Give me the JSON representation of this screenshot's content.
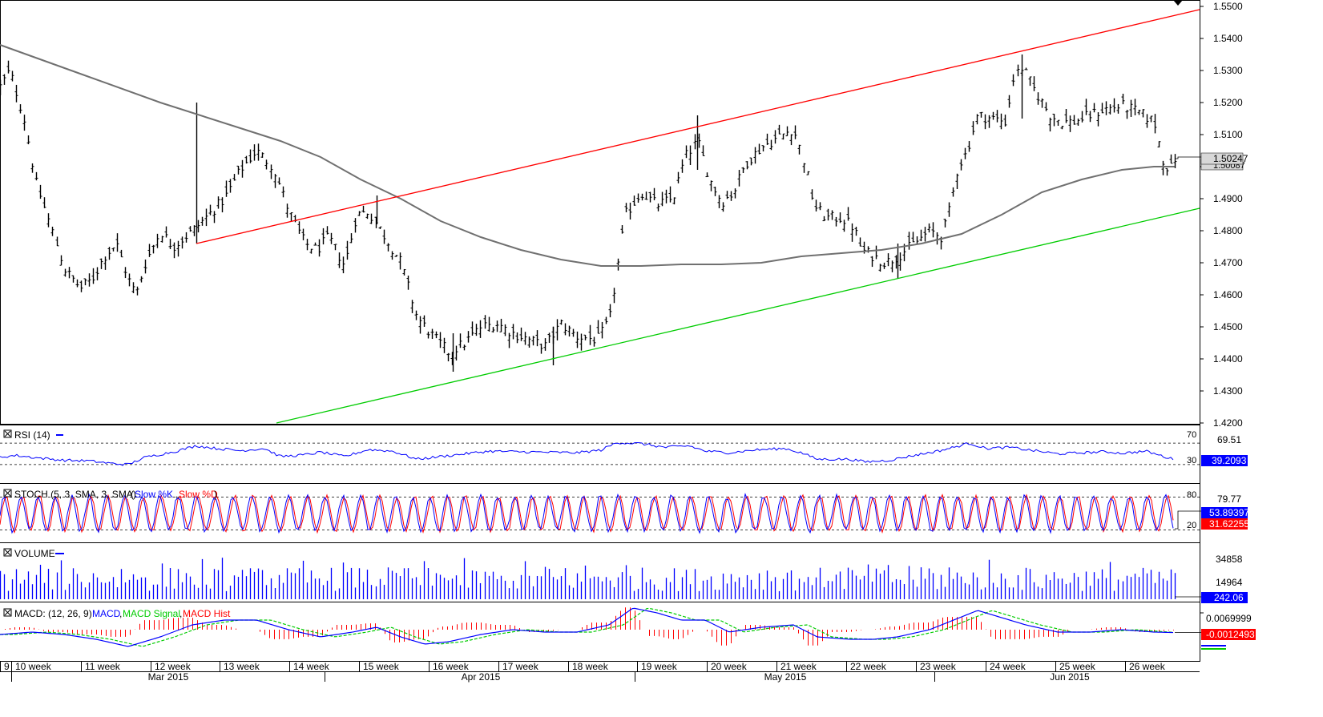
{
  "chart_data": {
    "type": "ohlc",
    "price_axis": {
      "ticks": [
        "1.5500",
        "1.5400",
        "1.5300",
        "1.5200",
        "1.5100",
        "1.5000",
        "1.4900",
        "1.4800",
        "1.4700",
        "1.4600",
        "1.4500",
        "1.4400",
        "1.4300",
        "1.4200"
      ],
      "ylim": [
        1.42,
        1.55
      ],
      "current_price": "1.50247",
      "prev_marker": "1.50087"
    },
    "x_axis": {
      "week_labels": [
        "9",
        "10 week",
        "11 week",
        "12 week",
        "13 week",
        "14 week",
        "15 week",
        "16 week",
        "17 week",
        "18 week",
        "19 week",
        "20 week",
        "21 week",
        "22 week",
        "23 week",
        "24 week",
        "25 week",
        "26 week"
      ],
      "month_labels": [
        "Mar 2015",
        "Apr 2015",
        "May 2015",
        "Jun 2015"
      ]
    },
    "price_series": {
      "close_anchors": [
        [
          0,
          1.525
        ],
        [
          12,
          1.53
        ],
        [
          30,
          1.515
        ],
        [
          45,
          1.495
        ],
        [
          65,
          1.48
        ],
        [
          80,
          1.468
        ],
        [
          100,
          1.462
        ],
        [
          115,
          1.465
        ],
        [
          130,
          1.472
        ],
        [
          145,
          1.476
        ],
        [
          160,
          1.465
        ],
        [
          170,
          1.46
        ],
        [
          180,
          1.469
        ],
        [
          200,
          1.48
        ],
        [
          215,
          1.475
        ],
        [
          240,
          1.48
        ],
        [
          260,
          1.485
        ],
        [
          280,
          1.49
        ],
        [
          300,
          1.499
        ],
        [
          320,
          1.505
        ],
        [
          340,
          1.5
        ],
        [
          360,
          1.486
        ],
        [
          380,
          1.476
        ],
        [
          395,
          1.474
        ],
        [
          410,
          1.478
        ],
        [
          430,
          1.469
        ],
        [
          445,
          1.485
        ],
        [
          460,
          1.486
        ],
        [
          480,
          1.478
        ],
        [
          500,
          1.47
        ],
        [
          520,
          1.453
        ],
        [
          540,
          1.447
        ],
        [
          560,
          1.442
        ],
        [
          580,
          1.445
        ],
        [
          600,
          1.45
        ],
        [
          620,
          1.451
        ],
        [
          640,
          1.448
        ],
        [
          660,
          1.446
        ],
        [
          680,
          1.444
        ],
        [
          700,
          1.451
        ],
        [
          720,
          1.447
        ],
        [
          745,
          1.446
        ],
        [
          760,
          1.452
        ],
        [
          780,
          1.485
        ],
        [
          800,
          1.492
        ],
        [
          820,
          1.488
        ],
        [
          840,
          1.49
        ],
        [
          855,
          1.503
        ],
        [
          870,
          1.508
        ],
        [
          885,
          1.496
        ],
        [
          900,
          1.489
        ],
        [
          915,
          1.492
        ],
        [
          930,
          1.501
        ],
        [
          950,
          1.506
        ],
        [
          970,
          1.509
        ],
        [
          990,
          1.512
        ],
        [
          1005,
          1.5
        ],
        [
          1015,
          1.488
        ],
        [
          1030,
          1.484
        ],
        [
          1050,
          1.484
        ],
        [
          1065,
          1.481
        ],
        [
          1075,
          1.474
        ],
        [
          1090,
          1.472
        ],
        [
          1105,
          1.47
        ],
        [
          1120,
          1.472
        ],
        [
          1140,
          1.476
        ],
        [
          1160,
          1.48
        ],
        [
          1175,
          1.478
        ],
        [
          1185,
          1.487
        ],
        [
          1195,
          1.5
        ],
        [
          1205,
          1.504
        ],
        [
          1220,
          1.516
        ],
        [
          1240,
          1.515
        ],
        [
          1255,
          1.514
        ],
        [
          1265,
          1.528
        ],
        [
          1275,
          1.531
        ],
        [
          1290,
          1.524
        ],
        [
          1310,
          1.516
        ],
        [
          1325,
          1.514
        ],
        [
          1340,
          1.514
        ],
        [
          1360,
          1.516
        ],
        [
          1380,
          1.518
        ],
        [
          1400,
          1.519
        ],
        [
          1420,
          1.517
        ],
        [
          1440,
          1.514
        ],
        [
          1452,
          1.501
        ],
        [
          1460,
          1.499
        ],
        [
          1466,
          1.5025
        ]
      ],
      "bar_count": 292,
      "x_start": 0,
      "x_end": 1466
    },
    "moving_average": {
      "name": "gray-ma",
      "points": [
        [
          0,
          1.538
        ],
        [
          100,
          1.529
        ],
        [
          200,
          1.52
        ],
        [
          300,
          1.512
        ],
        [
          350,
          1.508
        ],
        [
          400,
          1.503
        ],
        [
          450,
          1.496
        ],
        [
          500,
          1.49
        ],
        [
          550,
          1.483
        ],
        [
          600,
          1.478
        ],
        [
          650,
          1.474
        ],
        [
          700,
          1.471
        ],
        [
          750,
          1.469
        ],
        [
          800,
          1.469
        ],
        [
          850,
          1.4695
        ],
        [
          900,
          1.4695
        ],
        [
          950,
          1.47
        ],
        [
          1000,
          1.472
        ],
        [
          1050,
          1.473
        ],
        [
          1100,
          1.474
        ],
        [
          1150,
          1.476
        ],
        [
          1200,
          1.479
        ],
        [
          1250,
          1.485
        ],
        [
          1300,
          1.492
        ],
        [
          1350,
          1.496
        ],
        [
          1400,
          1.499
        ],
        [
          1440,
          1.5
        ],
        [
          1466,
          1.5
        ]
      ]
    },
    "trendlines": [
      {
        "name": "upper-channel",
        "color": "#ff0000",
        "p1": [
          245,
          1.476
        ],
        "p2": [
          1497,
          1.549
        ]
      },
      {
        "name": "lower-channel",
        "color": "#00cc00",
        "p1": [
          345,
          1.42
        ],
        "p2": [
          1497,
          1.487
        ]
      }
    ],
    "rsi": {
      "label": "RSI (14)",
      "levels": [
        "70",
        "30"
      ],
      "value": "39.2093",
      "high_value": "69.51",
      "color": "#0000ff",
      "anchors": [
        [
          0,
          44
        ],
        [
          20,
          47
        ],
        [
          50,
          42
        ],
        [
          80,
          38
        ],
        [
          110,
          37
        ],
        [
          140,
          32
        ],
        [
          160,
          30
        ],
        [
          180,
          43
        ],
        [
          200,
          49
        ],
        [
          220,
          55
        ],
        [
          245,
          65
        ],
        [
          270,
          60
        ],
        [
          300,
          56
        ],
        [
          330,
          60
        ],
        [
          350,
          45
        ],
        [
          380,
          48
        ],
        [
          400,
          53
        ],
        [
          430,
          45
        ],
        [
          460,
          58
        ],
        [
          490,
          55
        ],
        [
          520,
          40
        ],
        [
          550,
          45
        ],
        [
          580,
          50
        ],
        [
          610,
          55
        ],
        [
          640,
          54
        ],
        [
          680,
          53
        ],
        [
          720,
          52
        ],
        [
          750,
          57
        ],
        [
          770,
          71
        ],
        [
          800,
          69
        ],
        [
          830,
          62
        ],
        [
          860,
          65
        ],
        [
          880,
          55
        ],
        [
          910,
          52
        ],
        [
          940,
          57
        ],
        [
          980,
          60
        ],
        [
          1000,
          52
        ],
        [
          1020,
          40
        ],
        [
          1060,
          40
        ],
        [
          1080,
          35
        ],
        [
          1110,
          38
        ],
        [
          1140,
          47
        ],
        [
          1170,
          55
        ],
        [
          1190,
          62
        ],
        [
          1210,
          70
        ],
        [
          1230,
          60
        ],
        [
          1260,
          62
        ],
        [
          1290,
          56
        ],
        [
          1320,
          50
        ],
        [
          1350,
          52
        ],
        [
          1380,
          54
        ],
        [
          1400,
          51
        ],
        [
          1430,
          55
        ],
        [
          1450,
          46
        ],
        [
          1466,
          39
        ]
      ]
    },
    "stochastic": {
      "label": "STOCH (5, 3, SMA, 3, SMA)",
      "k_label": "Slow %K",
      "d_label": "Slow %D",
      "levels": [
        "80",
        "20"
      ],
      "k_value": "53.89397",
      "d_value": "31.62255",
      "high_value": "79.77",
      "k_color": "#0000ff",
      "d_color": "#ff0000",
      "period": 22,
      "center": 50,
      "amplitude": 32
    },
    "volume": {
      "label": "VOLUME",
      "ticks": [
        "34858",
        "14964"
      ],
      "value": "242.06",
      "color": "#0000ff",
      "bar_count": 292
    },
    "macd": {
      "label": "MACD: (12, 26, 9)",
      "macd_label": "MACD",
      "signal_label": "MACD Signal",
      "hist_label": "MACD Hist",
      "tick": "0.0069999",
      "value": "-0.0012493",
      "macd_color": "#0000ff",
      "signal_color": "#00cc00",
      "hist_color": "#ff0000",
      "ylim": [
        -0.012,
        0.01
      ],
      "anchors": [
        [
          0,
          -0.002
        ],
        [
          40,
          -0.001
        ],
        [
          80,
          -0.002
        ],
        [
          120,
          -0.004
        ],
        [
          160,
          -0.007
        ],
        [
          200,
          -0.003
        ],
        [
          240,
          0.002
        ],
        [
          280,
          0.004
        ],
        [
          320,
          0.004
        ],
        [
          360,
          0.0
        ],
        [
          400,
          -0.003
        ],
        [
          440,
          -0.001
        ],
        [
          470,
          0.001
        ],
        [
          500,
          -0.003
        ],
        [
          530,
          -0.006
        ],
        [
          560,
          -0.005
        ],
        [
          600,
          -0.002
        ],
        [
          640,
          0.0
        ],
        [
          680,
          -0.001
        ],
        [
          720,
          -0.001
        ],
        [
          760,
          0.002
        ],
        [
          790,
          0.009
        ],
        [
          820,
          0.007
        ],
        [
          850,
          0.004
        ],
        [
          880,
          0.004
        ],
        [
          910,
          -0.001
        ],
        [
          950,
          0.001
        ],
        [
          990,
          0.002
        ],
        [
          1020,
          -0.003
        ],
        [
          1060,
          -0.004
        ],
        [
          1090,
          -0.004
        ],
        [
          1120,
          -0.003
        ],
        [
          1160,
          0.0
        ],
        [
          1190,
          0.004
        ],
        [
          1220,
          0.008
        ],
        [
          1250,
          0.005
        ],
        [
          1280,
          0.002
        ],
        [
          1320,
          -0.001
        ],
        [
          1360,
          -0.001
        ],
        [
          1400,
          0.0
        ],
        [
          1440,
          -0.001
        ],
        [
          1466,
          -0.0012
        ]
      ]
    }
  }
}
